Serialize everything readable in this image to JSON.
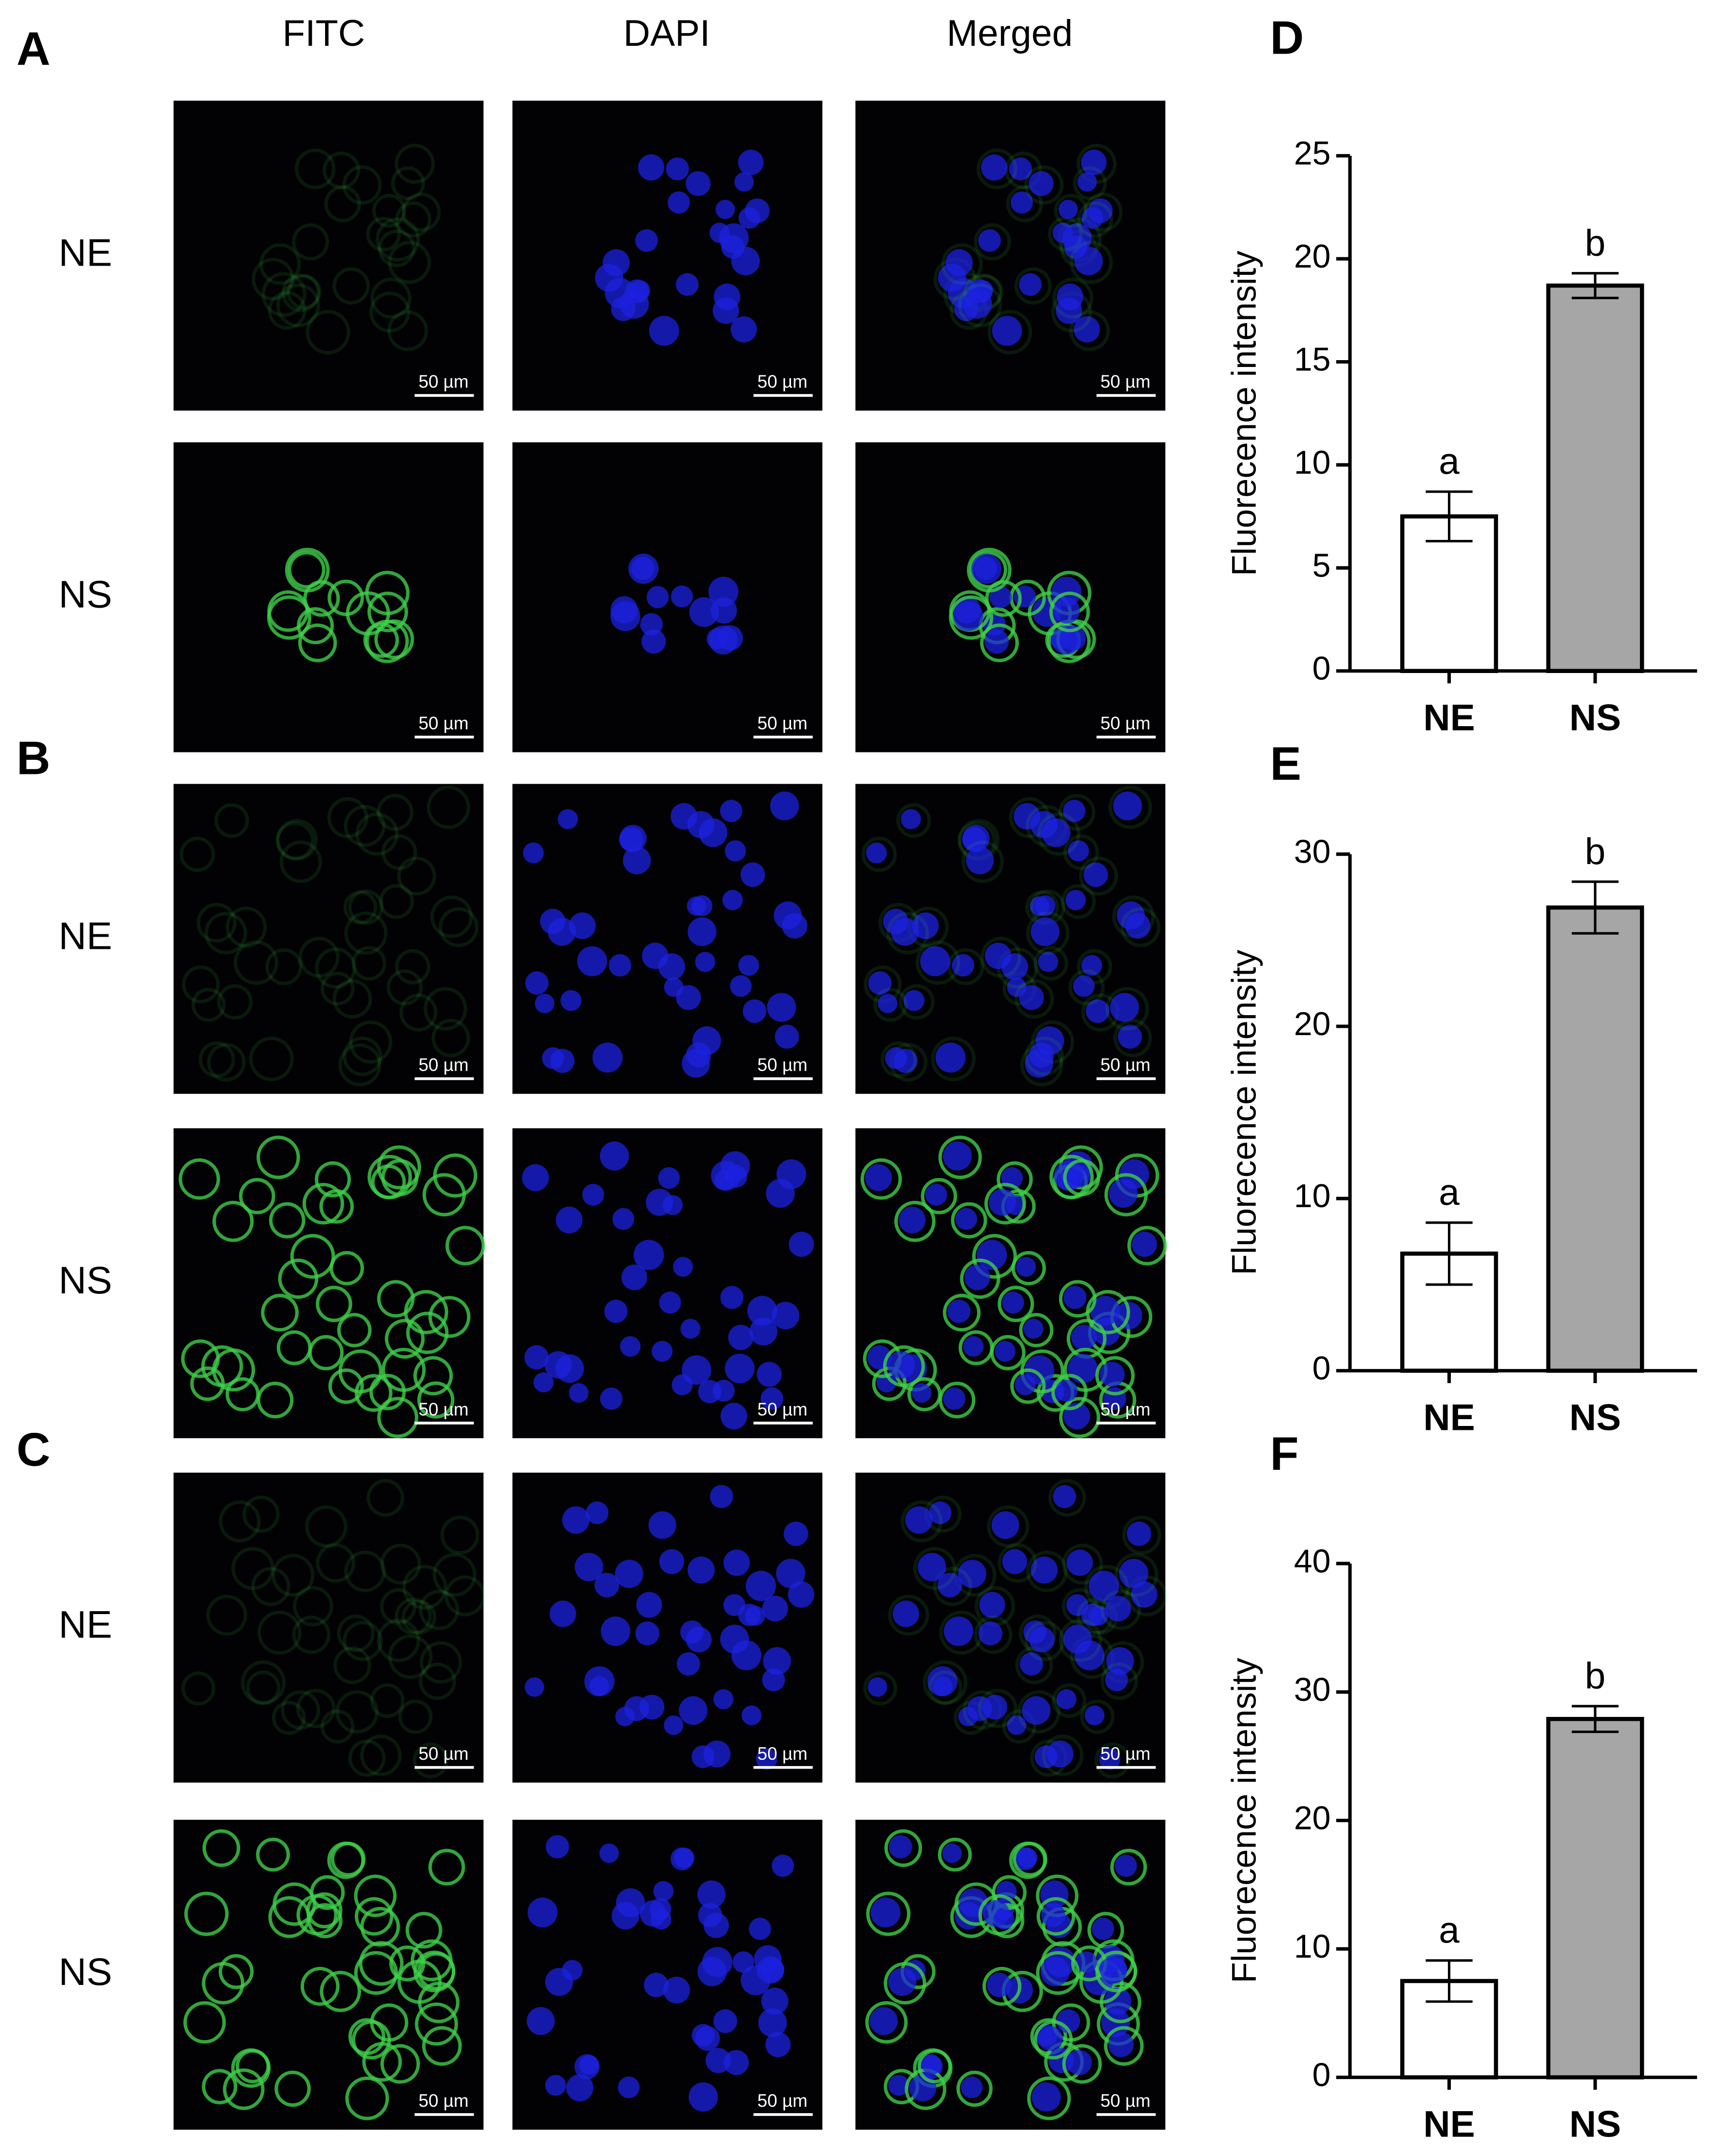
{
  "micrographs": {
    "columns": [
      "FITC",
      "DAPI",
      "Merged"
    ],
    "groups": [
      {
        "label": "A",
        "rows": [
          "NE",
          "NS"
        ]
      },
      {
        "label": "B",
        "rows": [
          "NE",
          "NS"
        ]
      },
      {
        "label": "C",
        "rows": [
          "NE",
          "NS"
        ]
      }
    ],
    "scale_bar": "50 µm"
  },
  "chart_data": [
    {
      "type": "bar",
      "panel": "D",
      "ylabel": "Fluorecence intensity",
      "categories": [
        "NE",
        "NS"
      ],
      "values": [
        7.5,
        18.7
      ],
      "errors": [
        1.2,
        0.6
      ],
      "annotations": [
        "a",
        "b"
      ],
      "colors": [
        "#ffffff",
        "#a6a6a6"
      ],
      "ylim": [
        0,
        25
      ],
      "yticks": [
        0,
        5,
        10,
        15,
        20,
        25
      ]
    },
    {
      "type": "bar",
      "panel": "E",
      "ylabel": "Fluorecence intensity",
      "categories": [
        "NE",
        "NS"
      ],
      "values": [
        6.8,
        26.9
      ],
      "errors": [
        1.8,
        1.5
      ],
      "annotations": [
        "a",
        "b"
      ],
      "colors": [
        "#ffffff",
        "#a6a6a6"
      ],
      "ylim": [
        0,
        30
      ],
      "yticks": [
        0,
        10,
        20,
        30
      ]
    },
    {
      "type": "bar",
      "panel": "F",
      "ylabel": "Fluorecence intensity",
      "categories": [
        "NE",
        "NS"
      ],
      "values": [
        7.5,
        27.9
      ],
      "errors": [
        1.6,
        1.0
      ],
      "annotations": [
        "a",
        "b"
      ],
      "colors": [
        "#ffffff",
        "#a6a6a6"
      ],
      "ylim": [
        0,
        40
      ],
      "yticks": [
        0,
        10,
        20,
        30,
        40
      ]
    }
  ]
}
